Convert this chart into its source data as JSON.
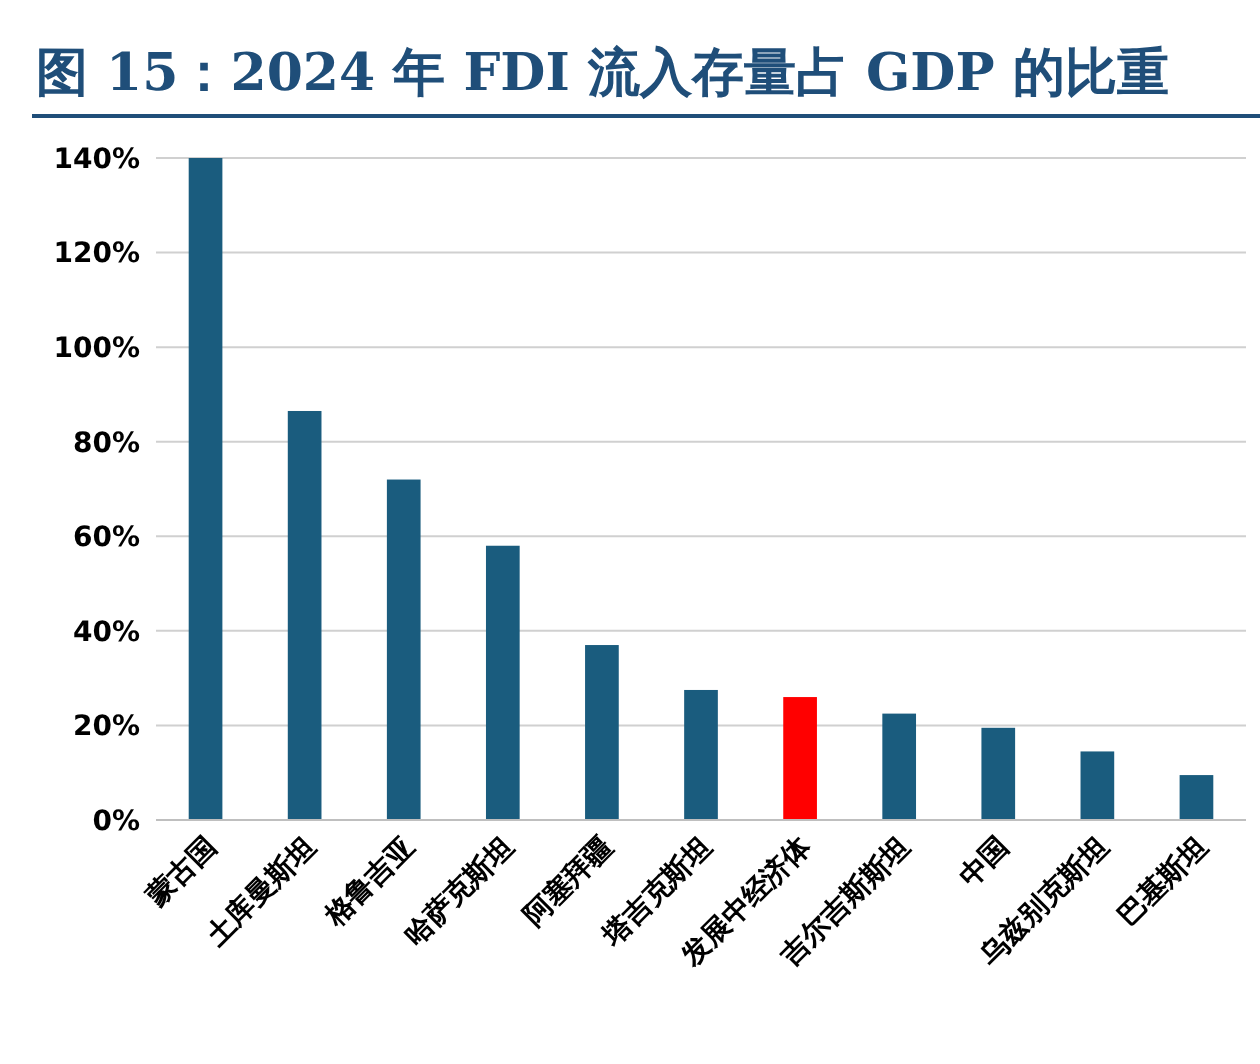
{
  "chart_data": {
    "type": "bar",
    "title": "图 15：2024 年 FDI 流入存量占 GDP 的比重",
    "categories": [
      "蒙古国",
      "土库曼斯坦",
      "格鲁吉亚",
      "哈萨克斯坦",
      "阿塞拜疆",
      "塔吉克斯坦",
      "发展中经济体",
      "吉尔吉斯斯坦",
      "中国",
      "乌兹别克斯坦",
      "巴基斯坦"
    ],
    "values": [
      140,
      86.5,
      72,
      58,
      37,
      27.5,
      26,
      22.5,
      19.5,
      14.5,
      9.5
    ],
    "colors": [
      "#1a5c7e",
      "#1a5c7e",
      "#1a5c7e",
      "#1a5c7e",
      "#1a5c7e",
      "#1a5c7e",
      "#ff0000",
      "#1a5c7e",
      "#1a5c7e",
      "#1a5c7e",
      "#1a5c7e"
    ],
    "ylim": [
      0,
      140
    ],
    "yticks": [
      {
        "value": 0,
        "label": "0%"
      },
      {
        "value": 20,
        "label": "20%"
      },
      {
        "value": 40,
        "label": "40%"
      },
      {
        "value": 60,
        "label": "60%"
      },
      {
        "value": 80,
        "label": "80%"
      },
      {
        "value": 100,
        "label": "100%"
      },
      {
        "value": 120,
        "label": "120%"
      },
      {
        "value": 140,
        "label": "140%"
      }
    ],
    "grid": "y"
  }
}
